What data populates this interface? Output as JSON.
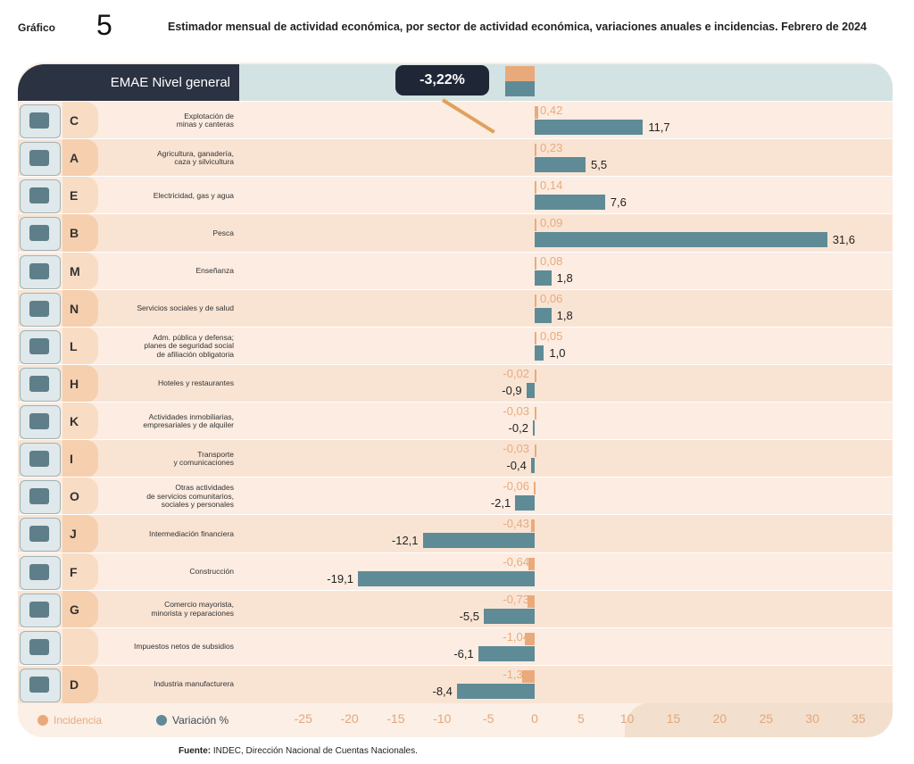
{
  "header": {
    "label": "Gráfico",
    "number": "5",
    "title": "Estimador mensual de actividad económica, por sector de actividad económica, variaciones anuales e incidencias. Febrero de 2024"
  },
  "colors": {
    "incidencia": "#e9aa7b",
    "variacion": "#5f8b97",
    "dark": "#2b3242"
  },
  "source": {
    "bold": "Fuente:",
    "text": " INDEC, Dirección Nacional de Cuentas Nacionales."
  },
  "chart_data": {
    "type": "bar",
    "orientation": "horizontal",
    "title": "Estimador mensual de actividad económica, por sector de actividad económica, variaciones anuales e incidencias. Febrero de 2024",
    "general": {
      "label": "EMAE Nivel general",
      "value_label": "-3,22%",
      "incidencia": -3.22,
      "variacion": -3.22
    },
    "xlim": [
      -25,
      35
    ],
    "ticks": [
      "-25",
      "-20",
      "-15",
      "-10",
      "-5",
      "0",
      "5",
      "10",
      "15",
      "20",
      "25",
      "30",
      "35"
    ],
    "legend": [
      {
        "name": "Incidencia"
      },
      {
        "name": "Variación %"
      }
    ],
    "categories": [
      {
        "code": "C",
        "label": "Explotación de\nminas y canteras",
        "incidencia": 0.42,
        "variacion": 11.7,
        "inc_label": "0,42",
        "var_label": "11,7"
      },
      {
        "code": "A",
        "label": "Agricultura, ganadería,\ncaza y silvicultura",
        "incidencia": 0.23,
        "variacion": 5.5,
        "inc_label": "0,23",
        "var_label": "5,5"
      },
      {
        "code": "E",
        "label": "Electricidad, gas y agua",
        "incidencia": 0.14,
        "variacion": 7.6,
        "inc_label": "0,14",
        "var_label": "7,6"
      },
      {
        "code": "B",
        "label": "Pesca",
        "incidencia": 0.09,
        "variacion": 31.6,
        "inc_label": "0,09",
        "var_label": "31,6"
      },
      {
        "code": "M",
        "label": "Enseñanza",
        "incidencia": 0.08,
        "variacion": 1.8,
        "inc_label": "0,08",
        "var_label": "1,8"
      },
      {
        "code": "N",
        "label": "Servicios sociales y de salud",
        "incidencia": 0.06,
        "variacion": 1.8,
        "inc_label": "0,06",
        "var_label": "1,8"
      },
      {
        "code": "L",
        "label": "Adm. pública y defensa;\nplanes de seguridad social\nde afiliación obligatoria",
        "incidencia": 0.05,
        "variacion": 1.0,
        "inc_label": "0,05",
        "var_label": "1,0"
      },
      {
        "code": "H",
        "label": "Hoteles y restaurantes",
        "incidencia": -0.02,
        "variacion": -0.9,
        "inc_label": "-0,02",
        "var_label": "-0,9"
      },
      {
        "code": "K",
        "label": "Actividades inmobiliarias,\nempresariales y de alquiler",
        "incidencia": -0.03,
        "variacion": -0.2,
        "inc_label": "-0,03",
        "var_label": "-0,2"
      },
      {
        "code": "I",
        "label": "Transporte\ny comunicaciones",
        "incidencia": -0.03,
        "variacion": -0.4,
        "inc_label": "-0,03",
        "var_label": "-0,4"
      },
      {
        "code": "O",
        "label": "Otras actividades\nde servicios comunitarios,\nsociales y personales",
        "incidencia": -0.06,
        "variacion": -2.1,
        "inc_label": "-0,06",
        "var_label": "-2,1"
      },
      {
        "code": "J",
        "label": "Intermediación financiera",
        "incidencia": -0.43,
        "variacion": -12.1,
        "inc_label": "-0,43",
        "var_label": "-12,1"
      },
      {
        "code": "F",
        "label": "Construcción",
        "incidencia": -0.64,
        "variacion": -19.1,
        "inc_label": "-0,64",
        "var_label": "-19,1"
      },
      {
        "code": "G",
        "label": "Comercio mayorista,\nminorista y reparaciones",
        "incidencia": -0.73,
        "variacion": -5.5,
        "inc_label": "-0,73",
        "var_label": "-5,5"
      },
      {
        "code": "",
        "label": "Impuestos netos de subsidios",
        "incidencia": -1.04,
        "variacion": -6.1,
        "inc_label": "-1,04",
        "var_label": "-6,1"
      },
      {
        "code": "D",
        "label": "Industria manufacturera",
        "incidencia": -1.32,
        "variacion": -8.4,
        "inc_label": "-1,32",
        "var_label": "-8,4"
      }
    ]
  }
}
